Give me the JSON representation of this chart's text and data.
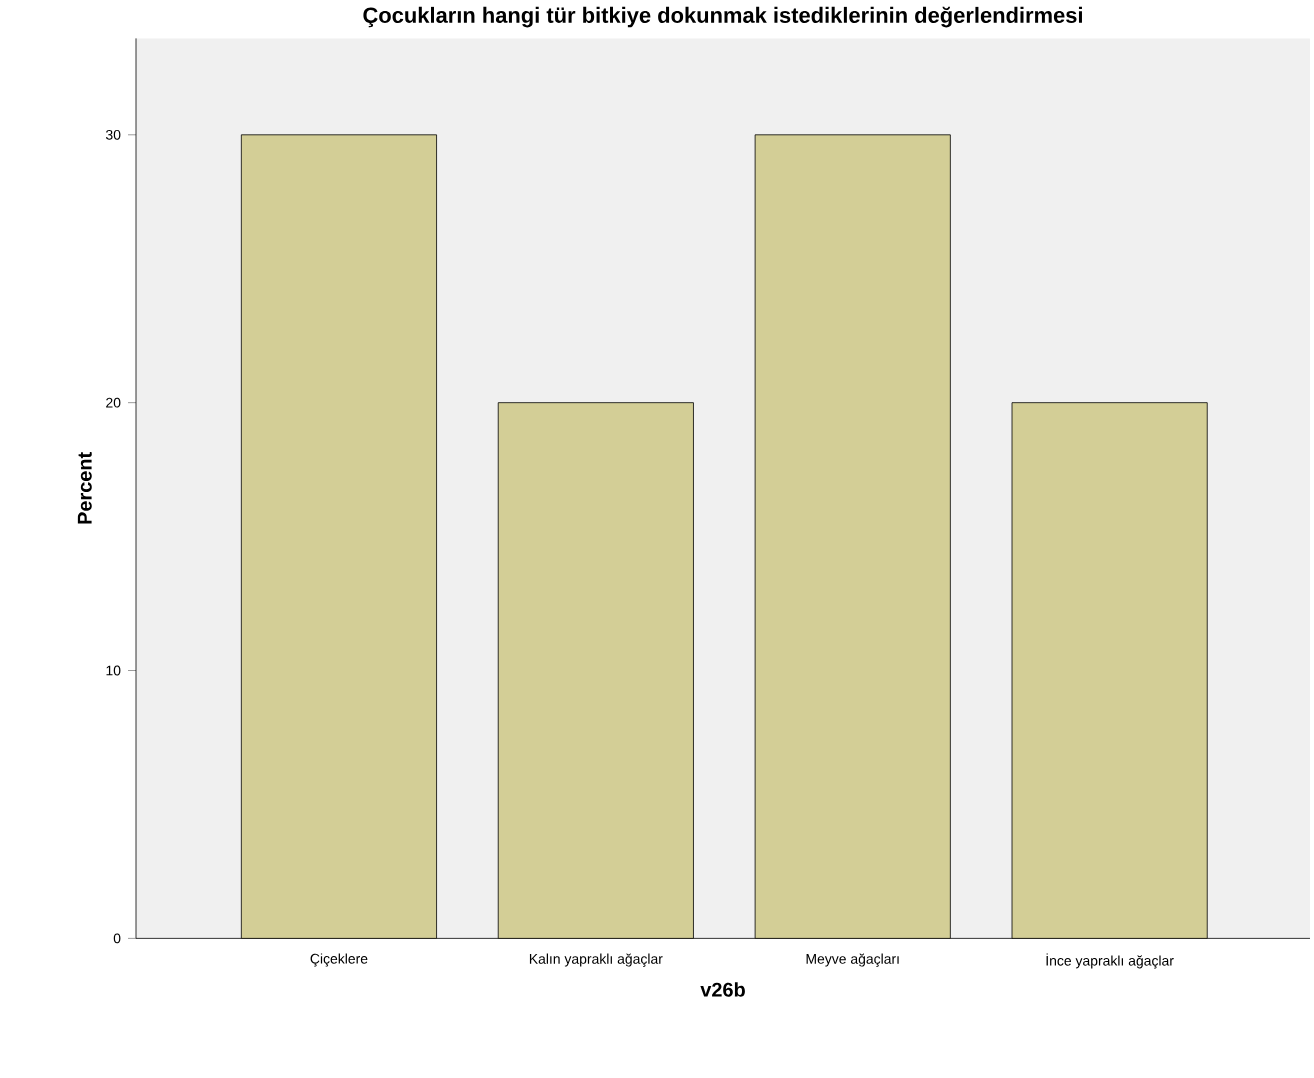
{
  "chart_data": {
    "type": "bar",
    "title": "Çocukların hangi tür bitkiye dokunmak istediklerinin değerlendirmesi",
    "xlabel": "v26b",
    "ylabel": "Percent",
    "categories": [
      "Çiçeklere",
      "Kalın yapraklı ağaçlar",
      "Meyve ağaçları",
      "İnce yapraklı ağaçlar"
    ],
    "values": [
      30,
      20,
      30,
      20
    ],
    "color": "#d3ce96",
    "ylim": [
      0,
      33.6
    ],
    "yticks": [
      0,
      10,
      20,
      30
    ],
    "grid": false
  }
}
